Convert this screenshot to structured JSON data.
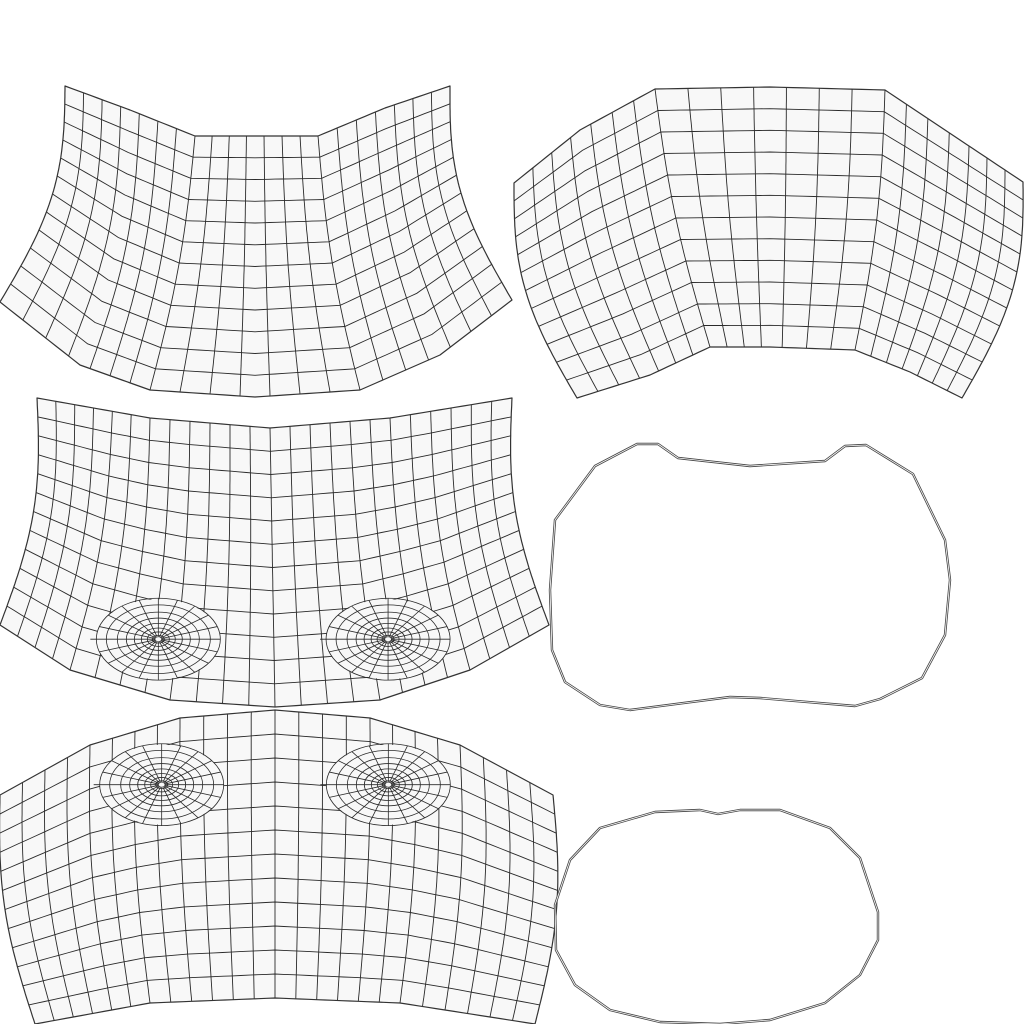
{
  "layout": {
    "background": "#ffffff",
    "fill_color": "#f8f8f8",
    "line_color": "#2a2a2a"
  },
  "islands": [
    {
      "name": "uv-island-top-left",
      "kind": "grid",
      "cols": 21,
      "rows": 12
    },
    {
      "name": "uv-island-top-right",
      "kind": "grid",
      "cols": 21,
      "rows": 12
    },
    {
      "name": "uv-island-middle-left",
      "kind": "grid",
      "cols": 24,
      "rows": 12,
      "poles": 2
    },
    {
      "name": "uv-island-bottom-left",
      "kind": "grid",
      "cols": 24,
      "rows": 12,
      "poles": 2
    },
    {
      "name": "uv-loop-middle-right",
      "kind": "loop"
    },
    {
      "name": "uv-loop-bottom-right",
      "kind": "loop"
    }
  ]
}
